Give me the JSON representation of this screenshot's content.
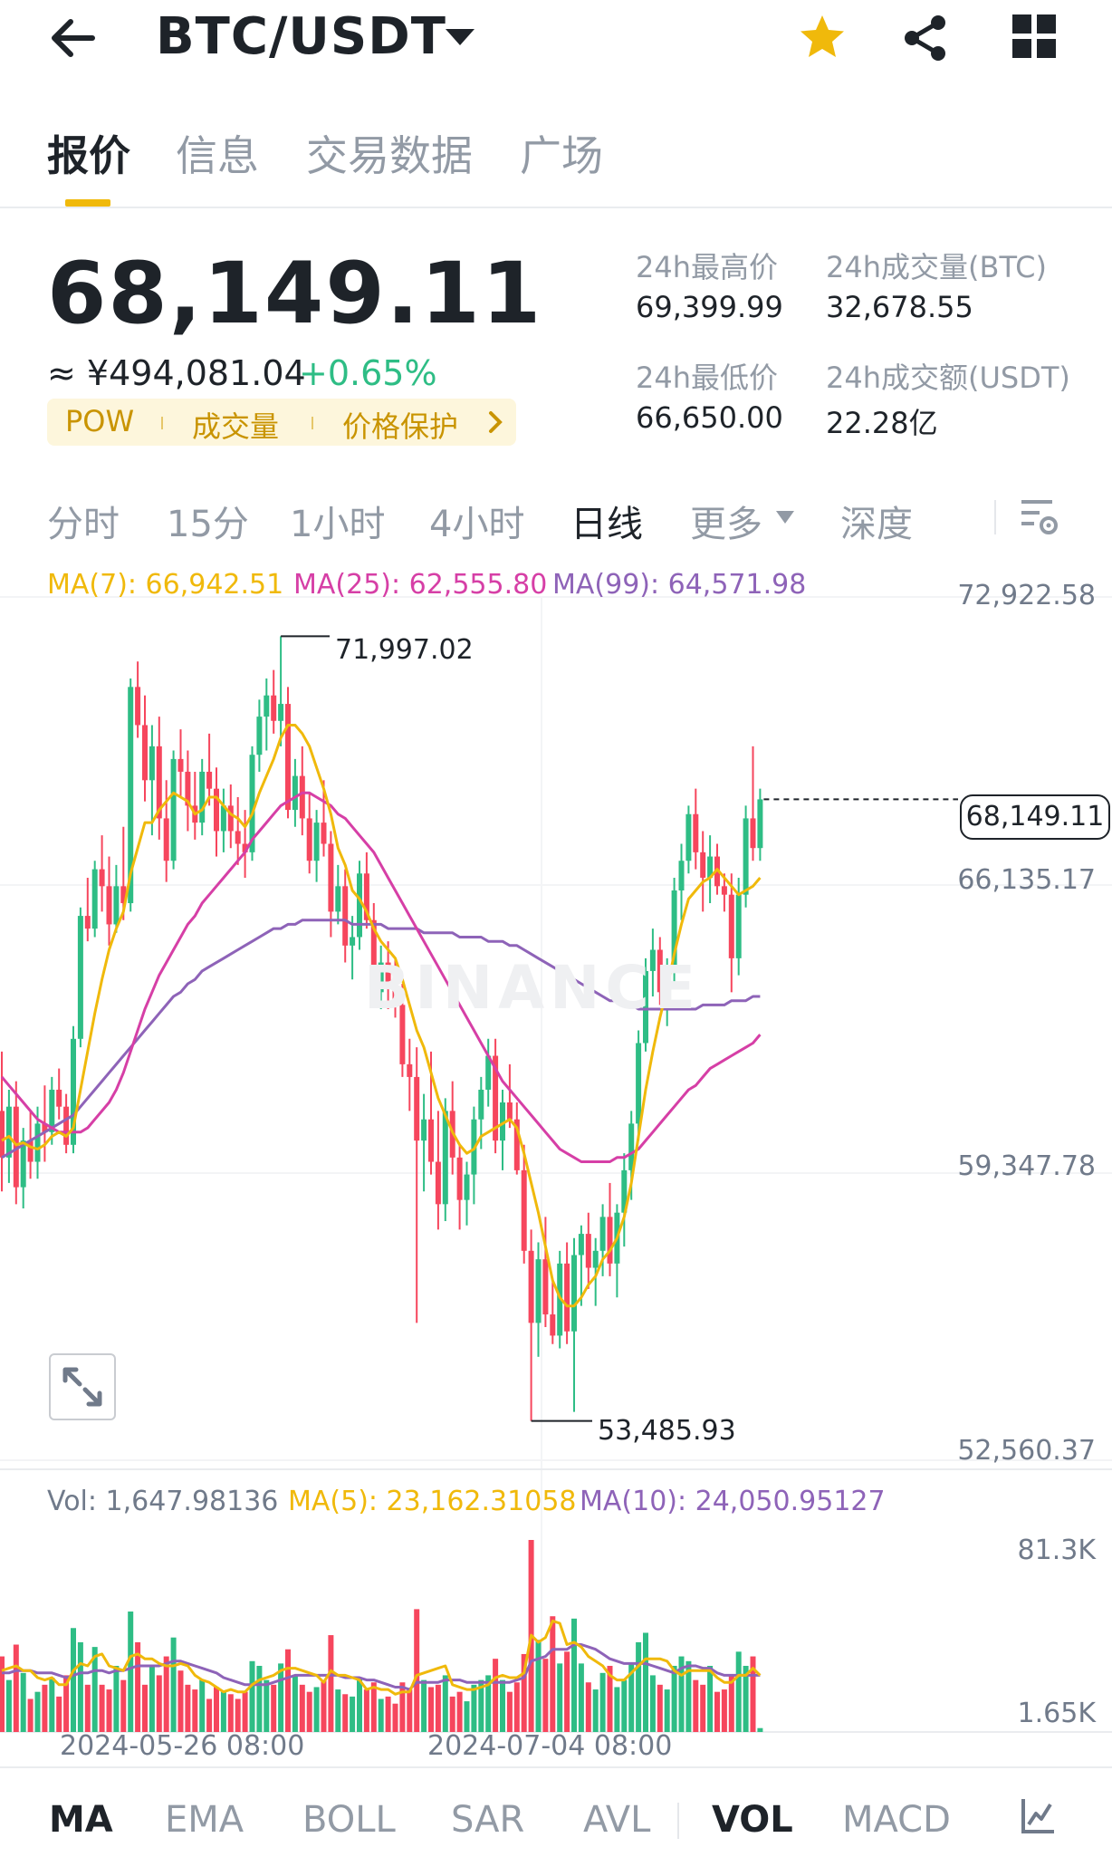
{
  "header": {
    "pair": "BTC/USDT"
  },
  "tabs": [
    "报价",
    "信息",
    "交易数据",
    "广场"
  ],
  "price": {
    "last": "68,149.11",
    "fiat": "≈ ¥494,081.04",
    "change": "+0.65%"
  },
  "tags": [
    "POW",
    "成交量",
    "价格保护"
  ],
  "stats": {
    "high_label": "24h最高价",
    "high_value": "69,399.99",
    "vol_btc_label": "24h成交量(BTC)",
    "vol_btc_value": "32,678.55",
    "low_label": "24h最低价",
    "low_value": "66,650.00",
    "vol_usdt_label": "24h成交额(USDT)",
    "vol_usdt_value": "22.28亿"
  },
  "intervals": [
    "分时",
    "15分",
    "1小时",
    "4小时",
    "日线",
    "更多",
    "深度"
  ],
  "indicator_tabs": [
    "MA",
    "EMA",
    "BOLL",
    "SAR",
    "AVL",
    "VOL",
    "MACD"
  ],
  "colors": {
    "up": "#2ebd85",
    "down": "#f6465d",
    "ma7": "#f0b90b",
    "ma25": "#d63fa6",
    "ma99": "#8e63b8",
    "accent": "#f0b90b"
  },
  "chart_data": {
    "type": "candlestick",
    "interval": "日线",
    "legend": {
      "ma7": "MA(7): 66,942.51",
      "ma25": "MA(25): 62,555.80",
      "ma99": "MA(99): 64,571.98"
    },
    "y_axis_labels": [
      "72,922.58",
      "66,135.17",
      "59,347.78",
      "52,560.37"
    ],
    "ylim": [
      52560.37,
      72922.58
    ],
    "current_price": "68,149.11",
    "max_label": "71,997.02",
    "min_label": "53,485.93",
    "x_axis_labels": [
      "2024-05-26 08:00",
      "2024-07-04 08:00"
    ],
    "candles": [
      [
        60800,
        62200,
        58900,
        59700
      ],
      [
        59700,
        61300,
        59100,
        60900
      ],
      [
        60900,
        61500,
        58600,
        59000
      ],
      [
        59000,
        60400,
        58500,
        60100
      ],
      [
        60100,
        60800,
        59200,
        59600
      ],
      [
        59600,
        60900,
        59200,
        60500
      ],
      [
        60500,
        61400,
        59600,
        60300
      ],
      [
        60300,
        61600,
        60000,
        61300
      ],
      [
        61300,
        61800,
        60600,
        60900
      ],
      [
        60900,
        61200,
        59800,
        60000
      ],
      [
        60000,
        62800,
        59800,
        62500
      ],
      [
        62500,
        65600,
        62300,
        65400
      ],
      [
        65400,
        66300,
        64800,
        65100
      ],
      [
        65100,
        66700,
        64900,
        66500
      ],
      [
        66500,
        67300,
        65500,
        66100
      ],
      [
        66100,
        66800,
        64700,
        65200
      ],
      [
        65200,
        66600,
        65000,
        66100
      ],
      [
        66100,
        67500,
        65300,
        65700
      ],
      [
        65700,
        71000,
        65500,
        70800
      ],
      [
        70800,
        71400,
        69600,
        69900
      ],
      [
        69900,
        70600,
        68100,
        68600
      ],
      [
        68600,
        69900,
        67300,
        69400
      ],
      [
        69400,
        70100,
        67200,
        67700
      ],
      [
        67700,
        68600,
        66200,
        66700
      ],
      [
        66700,
        69300,
        66500,
        69100
      ],
      [
        69100,
        69800,
        68200,
        68800
      ],
      [
        68800,
        69300,
        67400,
        68000
      ],
      [
        68000,
        68800,
        67200,
        67600
      ],
      [
        67600,
        69100,
        67300,
        68800
      ],
      [
        68800,
        69700,
        68000,
        68400
      ],
      [
        68400,
        68900,
        66800,
        67400
      ],
      [
        67400,
        68400,
        66900,
        68000
      ],
      [
        68000,
        68500,
        67000,
        67400
      ],
      [
        67400,
        68200,
        66600,
        67100
      ],
      [
        67100,
        67900,
        66300,
        66900
      ],
      [
        66900,
        69400,
        66700,
        69200
      ],
      [
        69200,
        70500,
        68800,
        70100
      ],
      [
        70100,
        71000,
        69300,
        70600
      ],
      [
        70600,
        71200,
        69700,
        70000
      ],
      [
        70000,
        71997,
        69400,
        70400
      ],
      [
        70400,
        70800,
        67700,
        67900
      ],
      [
        67900,
        69100,
        67500,
        68700
      ],
      [
        68700,
        69400,
        67300,
        67700
      ],
      [
        67700,
        68300,
        66400,
        66700
      ],
      [
        66700,
        67900,
        66200,
        67600
      ],
      [
        67600,
        68600,
        66800,
        67100
      ],
      [
        67100,
        67400,
        64900,
        65500
      ],
      [
        65500,
        66600,
        65200,
        66100
      ],
      [
        66100,
        66500,
        64300,
        64700
      ],
      [
        64700,
        65400,
        63900,
        64900
      ],
      [
        64900,
        66700,
        64600,
        66400
      ],
      [
        66400,
        66900,
        65100,
        65300
      ],
      [
        65300,
        65700,
        63400,
        63600
      ],
      [
        63600,
        64700,
        63200,
        64300
      ],
      [
        64300,
        64800,
        63200,
        63800
      ],
      [
        63800,
        64400,
        63000,
        63300
      ],
      [
        63300,
        63800,
        61600,
        61900
      ],
      [
        61900,
        62500,
        60800,
        61600
      ],
      [
        61600,
        62300,
        55800,
        60100
      ],
      [
        60100,
        61200,
        58900,
        60600
      ],
      [
        60600,
        62200,
        59300,
        59600
      ],
      [
        59600,
        60800,
        58000,
        58600
      ],
      [
        58600,
        61100,
        58200,
        60800
      ],
      [
        60800,
        61500,
        59300,
        59700
      ],
      [
        59700,
        60000,
        58000,
        58700
      ],
      [
        58700,
        59600,
        58100,
        59300
      ],
      [
        59300,
        60900,
        58600,
        60600
      ],
      [
        60600,
        61600,
        59900,
        61300
      ],
      [
        61300,
        62500,
        60900,
        62100
      ],
      [
        62100,
        62500,
        59800,
        60100
      ],
      [
        60100,
        61300,
        59400,
        61000
      ],
      [
        61000,
        61900,
        60400,
        60600
      ],
      [
        60600,
        61000,
        59300,
        59400
      ],
      [
        59400,
        60000,
        57200,
        57500
      ],
      [
        57500,
        58000,
        53486,
        55800
      ],
      [
        55800,
        57700,
        55000,
        57300
      ],
      [
        57300,
        58300,
        55700,
        56000
      ],
      [
        56000,
        56800,
        55300,
        55500
      ],
      [
        55500,
        57500,
        55200,
        57200
      ],
      [
        57200,
        57700,
        55300,
        55600
      ],
      [
        55600,
        57800,
        53700,
        57400
      ],
      [
        57400,
        58100,
        56200,
        57900
      ],
      [
        57900,
        58400,
        56600,
        57100
      ],
      [
        57100,
        57800,
        56200,
        57500
      ],
      [
        57500,
        58600,
        56900,
        58300
      ],
      [
        58300,
        59100,
        56900,
        57200
      ],
      [
        57200,
        58600,
        56400,
        58400
      ],
      [
        58400,
        59800,
        57600,
        59400
      ],
      [
        59400,
        60800,
        58700,
        60500
      ],
      [
        60500,
        62700,
        60100,
        62400
      ],
      [
        62400,
        64400,
        62200,
        64100
      ],
      [
        64100,
        65100,
        63500,
        64600
      ],
      [
        64600,
        64900,
        63300,
        63600
      ],
      [
        63600,
        64400,
        62800,
        64100
      ],
      [
        64100,
        66300,
        63800,
        66000
      ],
      [
        66000,
        67100,
        65300,
        66700
      ],
      [
        66700,
        68000,
        66400,
        67800
      ],
      [
        67800,
        68400,
        66500,
        66900
      ],
      [
        66900,
        67400,
        65500,
        66300
      ],
      [
        66300,
        67300,
        65700,
        66800
      ],
      [
        66800,
        67100,
        65900,
        66100
      ],
      [
        66100,
        66400,
        65500,
        65900
      ],
      [
        65900,
        66400,
        63600,
        64400
      ],
      [
        64400,
        66300,
        64000,
        65900
      ],
      [
        65900,
        68000,
        65600,
        67700
      ],
      [
        67700,
        69400,
        66700,
        67000
      ],
      [
        67000,
        68400,
        66700,
        68149
      ]
    ],
    "ma7": [
      60100,
      60200,
      60000,
      60050,
      59950,
      59900,
      60000,
      60200,
      60300,
      60200,
      60400,
      61300,
      62200,
      63100,
      63900,
      64600,
      65100,
      65500,
      66400,
      67000,
      67600,
      67600,
      67900,
      68100,
      68300,
      68200,
      68100,
      67800,
      67900,
      68200,
      68200,
      68000,
      67800,
      67700,
      67500,
      67800,
      68300,
      68700,
      69100,
      69600,
      69900,
      69900,
      69700,
      69400,
      68900,
      68400,
      67800,
      67000,
      66600,
      66000,
      65800,
      65500,
      65100,
      64800,
      64600,
      64400,
      63900,
      63300,
      62700,
      62300,
      61700,
      61100,
      60700,
      60300,
      60000,
      59800,
      59900,
      60200,
      60300,
      60400,
      60500,
      60600,
      60400,
      59800,
      59100,
      58400,
      57600,
      56800,
      56400,
      56200,
      56200,
      56400,
      56700,
      56900,
      57300,
      57500,
      57800,
      58300,
      59100,
      60200,
      61300,
      62200,
      63000,
      63700,
      64500,
      65200,
      65800,
      66000,
      66200,
      66300,
      66500,
      66300,
      66100,
      65900,
      66000,
      66100,
      66300
    ],
    "ma25": [
      61600,
      61400,
      61200,
      61000,
      60800,
      60600,
      60500,
      60400,
      60300,
      60300,
      60300,
      60300,
      60400,
      60600,
      60800,
      61000,
      61300,
      61700,
      62200,
      62700,
      63200,
      63600,
      64000,
      64300,
      64600,
      64900,
      65200,
      65400,
      65700,
      65900,
      66100,
      66300,
      66500,
      66700,
      66900,
      67200,
      67400,
      67600,
      67800,
      68000,
      68100,
      68200,
      68300,
      68300,
      68200,
      68100,
      68000,
      67800,
      67700,
      67500,
      67300,
      67100,
      66900,
      66600,
      66300,
      66000,
      65700,
      65400,
      65100,
      64800,
      64500,
      64200,
      63900,
      63600,
      63300,
      63000,
      62700,
      62400,
      62100,
      61800,
      61500,
      61300,
      61100,
      60900,
      60700,
      60500,
      60300,
      60100,
      59900,
      59800,
      59700,
      59600,
      59600,
      59600,
      59600,
      59600,
      59700,
      59700,
      59800,
      59900,
      60100,
      60300,
      60500,
      60700,
      60900,
      61100,
      61300,
      61400,
      61600,
      61800,
      61900,
      62000,
      62100,
      62200,
      62300,
      62400,
      62600
    ],
    "ma99": [
      59700,
      59800,
      59900,
      60000,
      60100,
      60200,
      60300,
      60400,
      60500,
      60600,
      60700,
      60900,
      61100,
      61300,
      61500,
      61700,
      61900,
      62100,
      62300,
      62500,
      62700,
      62900,
      63100,
      63300,
      63500,
      63600,
      63800,
      63900,
      64100,
      64200,
      64300,
      64400,
      64500,
      64600,
      64700,
      64800,
      64900,
      65000,
      65100,
      65100,
      65200,
      65200,
      65300,
      65300,
      65300,
      65300,
      65300,
      65300,
      65300,
      65200,
      65200,
      65200,
      65200,
      65200,
      65100,
      65100,
      65100,
      65100,
      65100,
      65000,
      65000,
      65000,
      65000,
      65000,
      64900,
      64900,
      64900,
      64900,
      64800,
      64800,
      64800,
      64700,
      64700,
      64600,
      64500,
      64400,
      64300,
      64200,
      64100,
      64000,
      63900,
      63800,
      63700,
      63600,
      63500,
      63400,
      63400,
      63300,
      63300,
      63200,
      63200,
      63200,
      63200,
      63200,
      63200,
      63200,
      63200,
      63200,
      63300,
      63300,
      63300,
      63300,
      63400,
      63400,
      63400,
      63500,
      63500
    ],
    "volume": {
      "legend": {
        "vol": "Vol: 1,647.98136",
        "ma5": "MA(5): 23,162.31058",
        "ma10": "MA(10): 24,050.95127"
      },
      "y_axis_labels": [
        "81.3K",
        "1.65K"
      ],
      "ylim": [
        0,
        81300
      ],
      "values": [
        32000,
        22000,
        37000,
        25000,
        14000,
        17000,
        20000,
        23000,
        15000,
        24000,
        44000,
        38000,
        20000,
        36000,
        20000,
        18000,
        28000,
        22000,
        51000,
        38000,
        20000,
        28000,
        24000,
        32000,
        40000,
        26000,
        20000,
        18000,
        22000,
        14000,
        19000,
        17000,
        16000,
        14000,
        17000,
        30000,
        28000,
        22000,
        20000,
        29000,
        35000,
        24000,
        20000,
        17000,
        19000,
        22000,
        41000,
        18000,
        16000,
        15000,
        23000,
        18000,
        21000,
        14000,
        15000,
        12000,
        21000,
        18000,
        52000,
        22000,
        19000,
        20000,
        24000,
        15000,
        17000,
        13000,
        20000,
        22000,
        24000,
        31000,
        22000,
        17000,
        21000,
        33000,
        81300,
        39000,
        31000,
        49000,
        29000,
        34000,
        48000,
        29000,
        21000,
        18000,
        25000,
        28000,
        19000,
        22000,
        29000,
        38000,
        42000,
        24000,
        20000,
        18000,
        28000,
        32000,
        30000,
        22000,
        20000,
        28000,
        17000,
        18000,
        24000,
        34000,
        28000,
        32000,
        1648
      ],
      "ma5": [
        26000,
        27000,
        28000,
        26000,
        26000,
        23000,
        22000,
        23000,
        20000,
        20000,
        26000,
        29000,
        28000,
        32000,
        33000,
        28000,
        27000,
        26000,
        32000,
        33000,
        31000,
        31000,
        29000,
        28000,
        28000,
        29000,
        28000,
        24000,
        22000,
        21000,
        19000,
        17000,
        18000,
        17000,
        17000,
        20000,
        22000,
        23000,
        24000,
        26000,
        27000,
        27000,
        26000,
        25000,
        24000,
        21000,
        26000,
        24000,
        24000,
        23000,
        22000,
        18000,
        19000,
        18000,
        18000,
        16000,
        17000,
        17000,
        24000,
        25000,
        26000,
        27000,
        28000,
        20000,
        19000,
        18000,
        18000,
        19000,
        20000,
        23000,
        24000,
        23000,
        23000,
        25000,
        41000,
        38000,
        40000,
        47000,
        46000,
        37000,
        38000,
        36000,
        32000,
        30000,
        28000,
        24000,
        22000,
        22000,
        25000,
        28000,
        31000,
        31000,
        31000,
        30000,
        26000,
        24000,
        26000,
        26000,
        26000,
        26000,
        23000,
        21000,
        21000,
        24000,
        24000,
        27000,
        24000
      ],
      "ma10": [
        25000,
        25000,
        26000,
        26000,
        26000,
        25000,
        25000,
        25000,
        24000,
        23000,
        24000,
        25000,
        25000,
        26000,
        26000,
        25000,
        26000,
        26000,
        27000,
        28000,
        28000,
        28000,
        28000,
        29000,
        30000,
        30000,
        29000,
        28000,
        27000,
        26000,
        25000,
        23000,
        22000,
        21000,
        20000,
        20000,
        20000,
        20000,
        21000,
        22000,
        23000,
        24000,
        24000,
        24000,
        24000,
        24000,
        24000,
        24000,
        23000,
        23000,
        23000,
        22000,
        22000,
        21000,
        20000,
        19000,
        19000,
        18000,
        21000,
        21000,
        21000,
        21000,
        22000,
        22000,
        22000,
        21000,
        21000,
        21000,
        21000,
        21000,
        21000,
        21000,
        22000,
        23000,
        30000,
        31000,
        32000,
        35000,
        35000,
        35000,
        37000,
        37000,
        36000,
        35000,
        33000,
        31000,
        30000,
        29000,
        29000,
        29000,
        29000,
        28000,
        27000,
        26000,
        25000,
        27000,
        28000,
        28000,
        27000,
        27000,
        25000,
        24000,
        24000,
        24000,
        24000,
        24000,
        24000
      ]
    }
  }
}
